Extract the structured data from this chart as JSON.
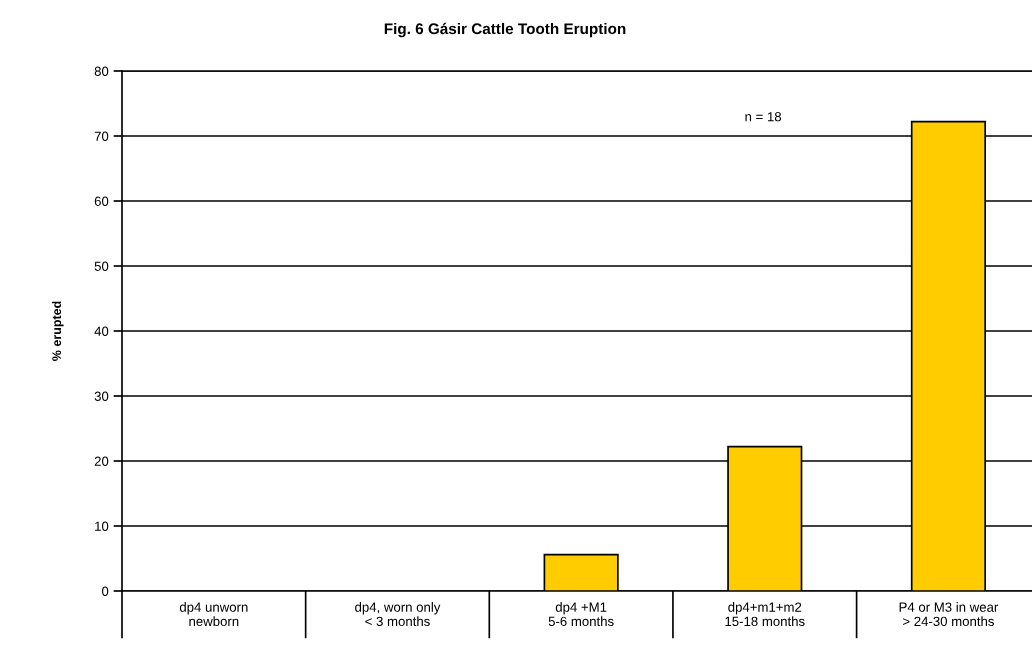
{
  "chart_data": {
    "type": "bar",
    "title": "Fig. 6 Gásir Cattle Tooth Eruption",
    "ylabel": "% erupted",
    "categories": [
      "dp4 unworn\nnewborn",
      "dp4, worn only\n< 3 months",
      "dp4 +M1\n5-6 months",
      "dp4+m1+m2\n15-18 months",
      "P4 or M3 in wear\n> 24-30 months"
    ],
    "values": [
      0,
      0,
      5.6,
      22.2,
      72.2
    ],
    "color": "#ffcc00",
    "ylim": [
      0,
      80
    ],
    "yticks": [
      0,
      10,
      20,
      30,
      40,
      50,
      60,
      70,
      80
    ],
    "grid": "y",
    "annotations": [
      "n = 18"
    ]
  }
}
